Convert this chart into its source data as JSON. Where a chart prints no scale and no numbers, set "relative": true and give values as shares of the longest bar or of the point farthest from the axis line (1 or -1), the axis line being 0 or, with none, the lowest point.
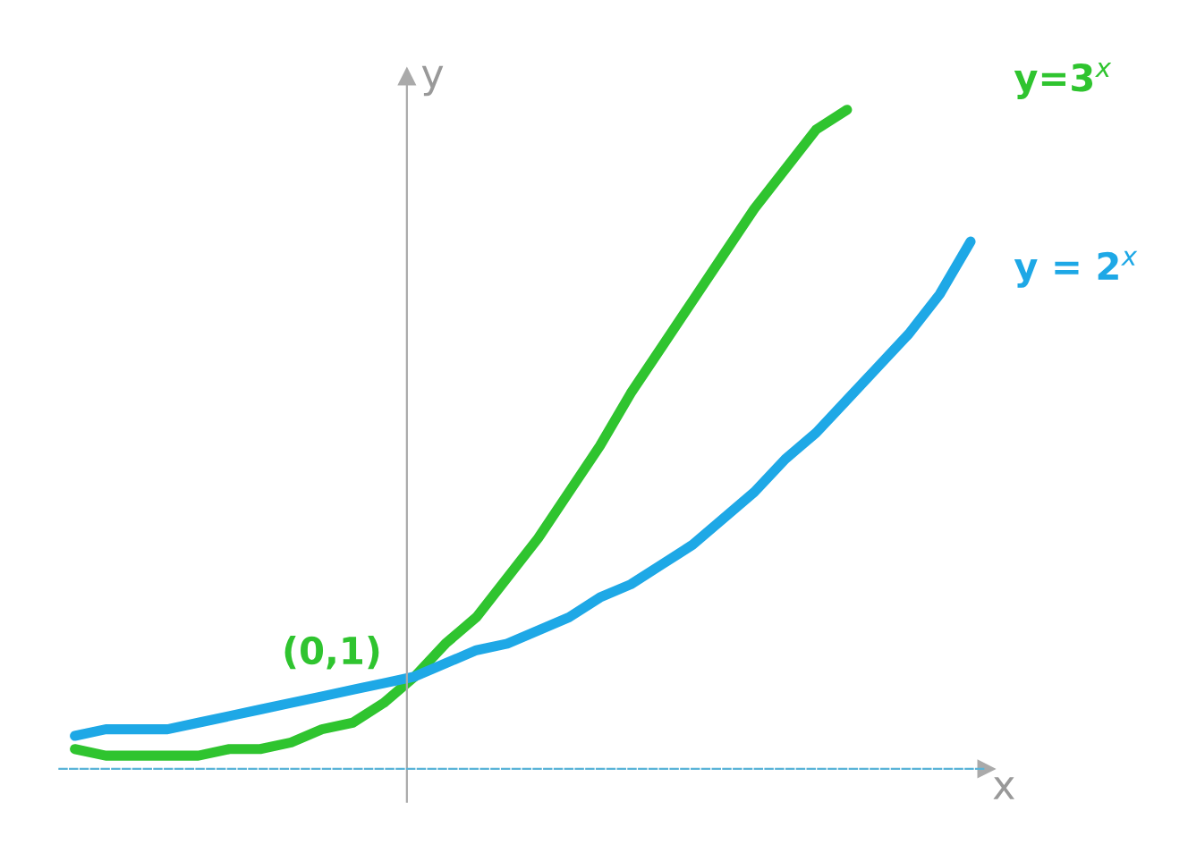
{
  "chart_data": {
    "type": "line",
    "relative": true,
    "xlabel": "x",
    "ylabel": "y",
    "categories": [
      null,
      null,
      null,
      null,
      null,
      null,
      null,
      null,
      null,
      null,
      null,
      null,
      null,
      null,
      null,
      null,
      null,
      null,
      null,
      null,
      null,
      null,
      null,
      null,
      null,
      null,
      null,
      null,
      null,
      null
    ],
    "series": [
      {
        "color": "#2fc42f",
        "values": [
          0.03,
          0.02,
          0.02,
          0.02,
          0.02,
          0.03,
          0.03,
          0.04,
          0.06,
          0.07,
          0.1,
          0.14,
          0.19,
          0.23,
          0.29,
          0.35,
          0.42,
          0.49,
          0.57,
          0.64,
          0.71,
          0.78,
          0.85,
          0.91,
          0.97,
          1,
          null,
          null,
          null,
          null
        ]
      },
      {
        "color": "#1ea8e6",
        "values": [
          0.05,
          0.06,
          0.06,
          0.06,
          0.07,
          0.08,
          0.09,
          0.1,
          0.11,
          0.12,
          0.13,
          0.14,
          0.16,
          0.18,
          0.19,
          0.21,
          0.23,
          0.26,
          0.28,
          0.31,
          0.34,
          0.38,
          0.42,
          0.47,
          0.51,
          0.56,
          0.61,
          0.66,
          0.72,
          0.8
        ]
      }
    ],
    "annotations": [
      "y=3$^{x}$",
      "y = 2$^{x}$",
      "(0,1)"
    ],
    "legend": false,
    "marker": "none",
    "line_style": "solid"
  }
}
